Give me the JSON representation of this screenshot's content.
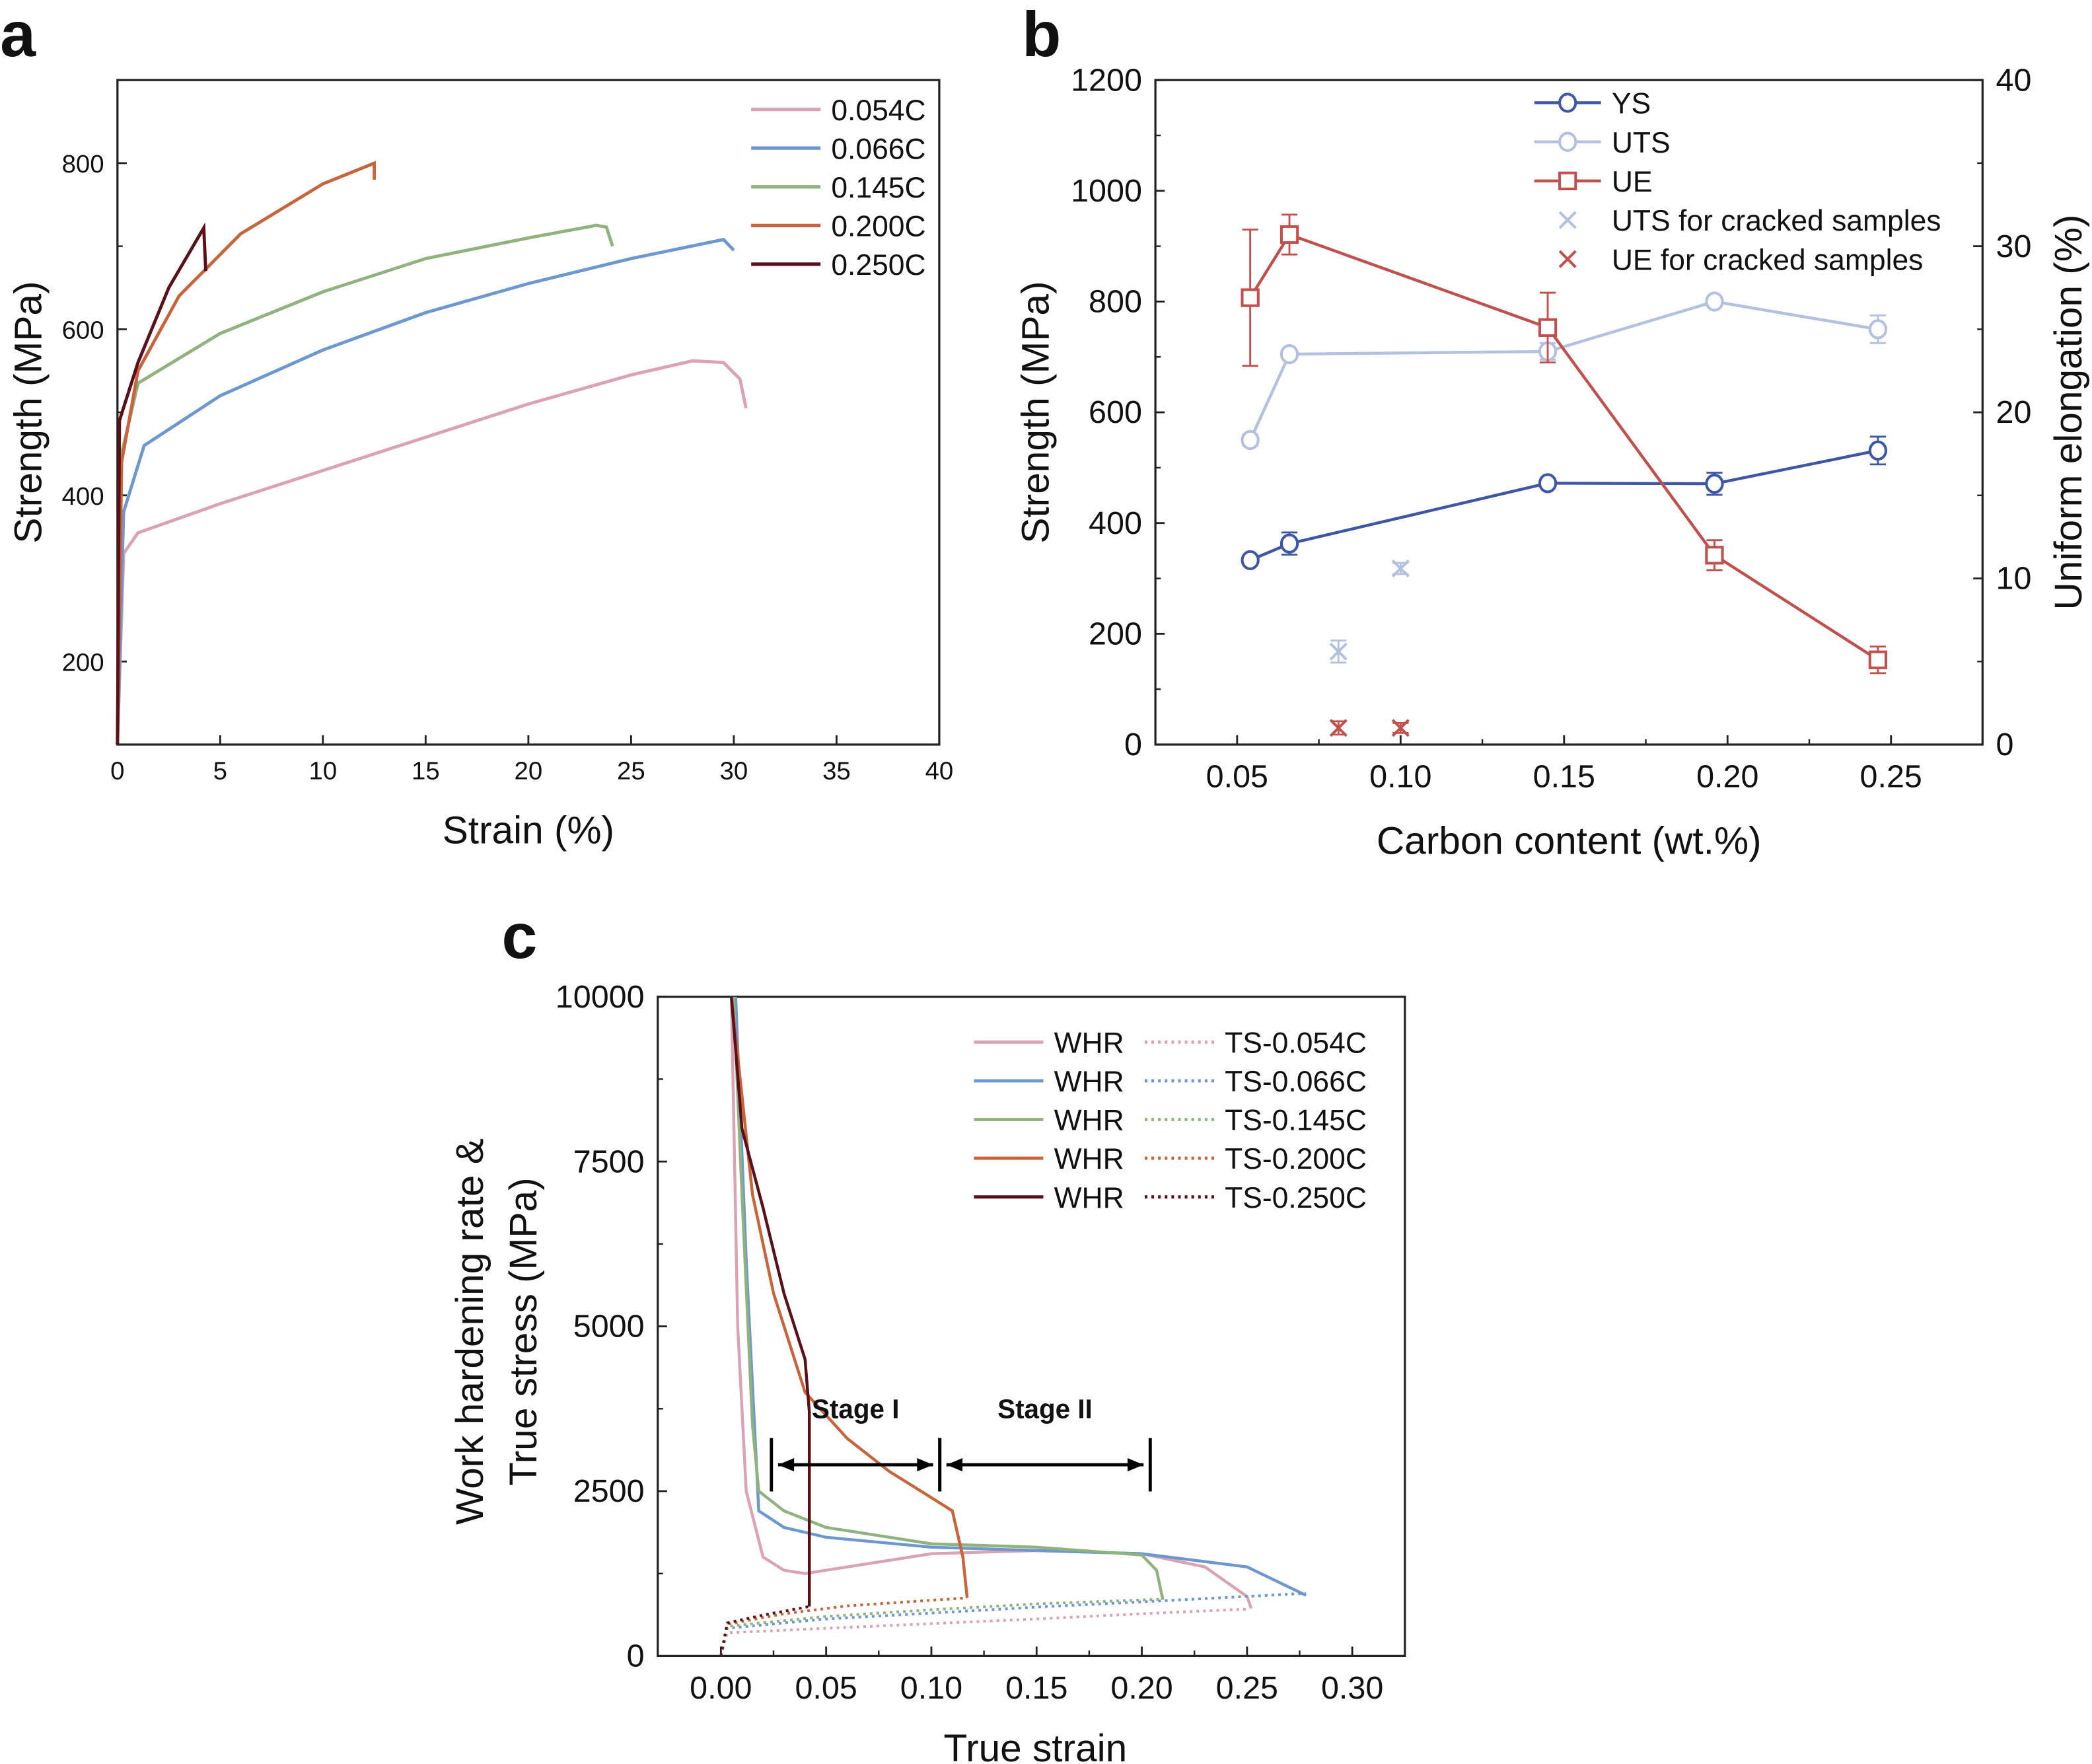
{
  "chart_data": [
    {
      "panel": "a",
      "type": "line",
      "xlabel": "Strain (%)",
      "ylabel": "Strength (MPa)",
      "xlim": [
        0,
        40
      ],
      "ylim": [
        100,
        900
      ],
      "xticks": [
        0,
        5,
        10,
        15,
        20,
        25,
        30,
        35,
        40
      ],
      "xtick_labels": [
        "0",
        "5",
        "10",
        "15",
        "20",
        "25",
        "30",
        "35",
        "40"
      ],
      "yticks": [
        200,
        400,
        600,
        800
      ],
      "ytick_labels": [
        "200",
        "400",
        "600",
        "800"
      ],
      "legend_position": "top-right",
      "series": [
        {
          "name": "0.054C",
          "color": "#d9a3b3",
          "x": [
            0,
            0.3,
            1,
            5,
            10,
            15,
            20,
            25,
            28,
            29.5,
            30.3,
            30.6
          ],
          "y": [
            100,
            330,
            355,
            390,
            430,
            470,
            510,
            545,
            562,
            560,
            540,
            505
          ]
        },
        {
          "name": "0.066C",
          "color": "#6d97cf",
          "x": [
            0,
            0.3,
            1.3,
            5,
            10,
            15,
            20,
            25,
            29.5,
            30
          ],
          "y": [
            100,
            380,
            460,
            520,
            575,
            620,
            655,
            685,
            708,
            695
          ]
        },
        {
          "name": "0.145C",
          "color": "#8fb27f",
          "x": [
            0,
            0.2,
            1,
            5,
            10,
            15,
            20,
            23.3,
            23.8,
            24.1
          ],
          "y": [
            100,
            450,
            535,
            595,
            645,
            685,
            710,
            725,
            723,
            700
          ]
        },
        {
          "name": "0.200C",
          "color": "#c8643c",
          "x": [
            0,
            0.2,
            1,
            3,
            6,
            10,
            12.5,
            12.5
          ],
          "y": [
            100,
            440,
            550,
            640,
            715,
            775,
            800,
            780
          ]
        },
        {
          "name": "0.250C",
          "color": "#5a1018",
          "x": [
            0,
            0.1,
            1,
            2.5,
            4.2,
            4.3
          ],
          "y": [
            100,
            490,
            560,
            650,
            722,
            670
          ]
        }
      ]
    },
    {
      "panel": "b",
      "type": "line",
      "xlabel": "Carbon content (wt.%)",
      "ylabel": "Strength (MPa)",
      "ylabel_right": "Uniform elongation (%)",
      "xlim": [
        0.025,
        0.278
      ],
      "ylim": [
        0,
        1200
      ],
      "ylim_right": [
        0,
        40
      ],
      "xticks": [
        0.05,
        0.1,
        0.15,
        0.2,
        0.25
      ],
      "xtick_labels": [
        "0.05",
        "0.10",
        "0.15",
        "0.20",
        "0.25"
      ],
      "yticks": [
        0,
        200,
        400,
        600,
        800,
        1000,
        1200
      ],
      "ytick_labels": [
        "0",
        "200",
        "400",
        "600",
        "800",
        "1000",
        "1200"
      ],
      "yticks_right": [
        0,
        10,
        20,
        30,
        40
      ],
      "ytick_labels_right": [
        "0",
        "10",
        "20",
        "30",
        "40"
      ],
      "legend_position": "top-right",
      "series": [
        {
          "name": "YS",
          "axis": "left",
          "marker": "circle",
          "color": "#3d56a6",
          "x": [
            0.054,
            0.066,
            0.145,
            0.196,
            0.246
          ],
          "y": [
            333,
            363,
            472,
            471,
            531
          ],
          "err": [
            8,
            20,
            8,
            20,
            25
          ]
        },
        {
          "name": "UTS",
          "axis": "left",
          "marker": "circle",
          "color": "#b3c0e0",
          "x": [
            0.054,
            0.066,
            0.145,
            0.196,
            0.246
          ],
          "y": [
            550,
            705,
            710,
            800,
            750
          ],
          "err": [
            10,
            5,
            15,
            5,
            25
          ]
        },
        {
          "name": "UE",
          "axis": "right",
          "marker": "square",
          "color": "#c0504d",
          "x": [
            0.054,
            0.066,
            0.145,
            0.196,
            0.246
          ],
          "y": [
            26.9,
            30.7,
            25.1,
            11.4,
            5.1
          ],
          "err": [
            4.1,
            1.2,
            2.1,
            0.9,
            0.8
          ]
        },
        {
          "name": "UTS for cracked samples",
          "axis": "left",
          "marker": "x",
          "color": "#b3c0e0",
          "x": [
            0.081,
            0.1
          ],
          "y": [
            168,
            318
          ],
          "err": [
            20,
            10
          ]
        },
        {
          "name": "UE for cracked samples",
          "axis": "right",
          "marker": "x",
          "color": "#c0504d",
          "x": [
            0.081,
            0.1
          ],
          "y": [
            1.0,
            1.0
          ],
          "err": [
            0.4,
            0.3
          ]
        }
      ]
    },
    {
      "panel": "c",
      "type": "line",
      "xlabel": "True strain",
      "ylabel": [
        "Work hardening rate &",
        "True stress (MPa)"
      ],
      "xlim": [
        -0.03,
        0.325
      ],
      "ylim": [
        0,
        10000
      ],
      "xticks": [
        0,
        0.05,
        0.1,
        0.15,
        0.2,
        0.25,
        0.3
      ],
      "xtick_labels": [
        "0.00",
        "0.05",
        "0.10",
        "0.15",
        "0.20",
        "0.25",
        "0.30"
      ],
      "yticks": [
        0,
        2500,
        5000,
        7500,
        10000
      ],
      "ytick_labels": [
        "0",
        "2500",
        "5000",
        "7500",
        "10000"
      ],
      "legend_position": "top-right",
      "annotations": [
        {
          "text": "Stage I",
          "from": 0.024,
          "to": 0.104,
          "y": 2900
        },
        {
          "text": "Stage II",
          "from": 0.104,
          "to": 0.204,
          "y": 2900
        }
      ],
      "series": [
        {
          "name": "WHR",
          "style": "solid",
          "color": "#d9a3b3",
          "x": [
            0.005,
            0.008,
            0.012,
            0.02,
            0.03,
            0.04,
            0.06,
            0.1,
            0.15,
            0.2,
            0.23,
            0.25,
            0.252
          ],
          "y": [
            10000,
            5000,
            2500,
            1500,
            1300,
            1250,
            1350,
            1550,
            1600,
            1550,
            1350,
            900,
            720
          ]
        },
        {
          "name": "WHR",
          "style": "solid",
          "color": "#6d97cf",
          "x": [
            0.007,
            0.012,
            0.018,
            0.03,
            0.05,
            0.1,
            0.15,
            0.2,
            0.25,
            0.278
          ],
          "y": [
            10000,
            6000,
            2200,
            1950,
            1800,
            1650,
            1600,
            1550,
            1350,
            920
          ]
        },
        {
          "name": "WHR",
          "style": "solid",
          "color": "#8fb27f",
          "x": [
            0.006,
            0.01,
            0.015,
            0.018,
            0.03,
            0.05,
            0.1,
            0.15,
            0.2,
            0.207,
            0.21
          ],
          "y": [
            10000,
            7000,
            3500,
            2500,
            2200,
            1950,
            1700,
            1650,
            1530,
            1300,
            850
          ]
        },
        {
          "name": "WHR",
          "style": "solid",
          "color": "#c8643c",
          "x": [
            0.005,
            0.015,
            0.025,
            0.04,
            0.06,
            0.08,
            0.1,
            0.11,
            0.115,
            0.117
          ],
          "y": [
            10000,
            7000,
            5500,
            4000,
            3300,
            2800,
            2400,
            2200,
            1500,
            880
          ]
        },
        {
          "name": "WHR",
          "style": "solid",
          "color": "#5a1018",
          "x": [
            0.005,
            0.01,
            0.02,
            0.03,
            0.04,
            0.042,
            0.042
          ],
          "y": [
            10000,
            8000,
            6800,
            5500,
            4500,
            3700,
            750
          ]
        },
        {
          "name": "TS-0.054C",
          "style": "dotted",
          "color": "#d9a3b3",
          "x": [
            0,
            0.003,
            0.05,
            0.1,
            0.15,
            0.2,
            0.25
          ],
          "y": [
            0,
            350,
            420,
            490,
            560,
            640,
            710
          ]
        },
        {
          "name": "TS-0.066C",
          "style": "dotted",
          "color": "#6d97cf",
          "x": [
            0,
            0.003,
            0.05,
            0.1,
            0.15,
            0.2,
            0.278
          ],
          "y": [
            0,
            420,
            560,
            650,
            740,
            820,
            950
          ]
        },
        {
          "name": "TS-0.145C",
          "style": "dotted",
          "color": "#8fb27f",
          "x": [
            0,
            0.003,
            0.05,
            0.1,
            0.15,
            0.21
          ],
          "y": [
            0,
            450,
            600,
            700,
            790,
            860
          ]
        },
        {
          "name": "TS-0.200C",
          "style": "dotted",
          "color": "#c8643c",
          "x": [
            0,
            0.003,
            0.03,
            0.06,
            0.117
          ],
          "y": [
            0,
            480,
            640,
            760,
            880
          ]
        },
        {
          "name": "TS-0.250C",
          "style": "dotted",
          "color": "#5a1018",
          "x": [
            0,
            0.003,
            0.02,
            0.042
          ],
          "y": [
            0,
            500,
            620,
            750
          ]
        }
      ]
    }
  ]
}
